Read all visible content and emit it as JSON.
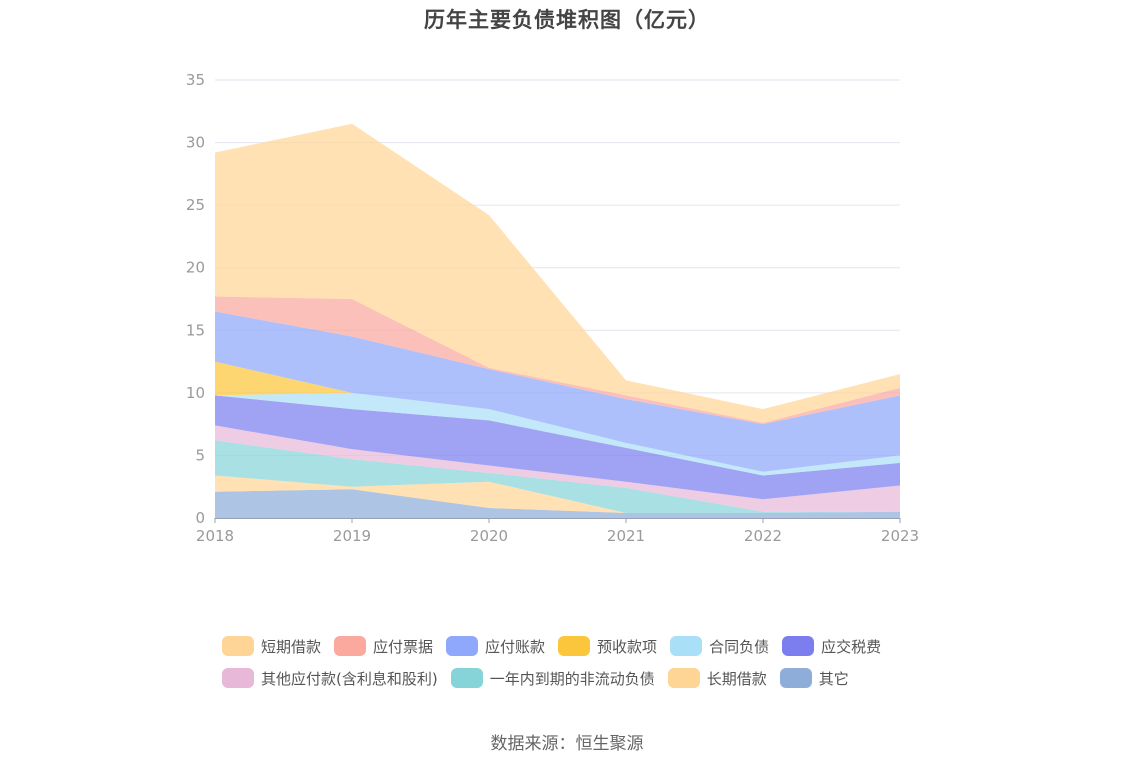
{
  "chart_data": {
    "type": "area",
    "stacked": true,
    "title": "历年主要负债堆积图（亿元）",
    "source": "数据来源：恒生聚源",
    "x": [
      "2018",
      "2019",
      "2020",
      "2021",
      "2022",
      "2023"
    ],
    "y_ticks": [
      "0",
      "5",
      "10",
      "15",
      "20",
      "25",
      "30",
      "35"
    ],
    "ylim": [
      0,
      35
    ],
    "grid": true,
    "legend_position": "bottom",
    "series": [
      {
        "name": "其它",
        "color": "#8fadd9",
        "values": [
          2.1,
          2.3,
          0.8,
          0.4,
          0.4,
          0.5
        ]
      },
      {
        "name": "长期借款",
        "color": "#ffd596",
        "values": [
          1.3,
          0.2,
          2.1,
          0.0,
          0.0,
          0.0
        ]
      },
      {
        "name": "一年内到期的非流动负债",
        "color": "#86d4d8",
        "values": [
          2.8,
          2.2,
          0.7,
          2.0,
          0.1,
          0.0
        ]
      },
      {
        "name": "其他应付款(含利息和股利)",
        "color": "#e8b8d9",
        "values": [
          1.2,
          0.8,
          0.6,
          0.5,
          1.0,
          2.1
        ]
      },
      {
        "name": "应交税费",
        "color": "#7c7ef0",
        "values": [
          2.4,
          3.2,
          3.6,
          2.7,
          1.9,
          1.8
        ]
      },
      {
        "name": "合同负债",
        "color": "#aadff8",
        "values": [
          0.0,
          1.3,
          0.9,
          0.4,
          0.3,
          0.6
        ]
      },
      {
        "name": "预收款项",
        "color": "#fcc63c",
        "values": [
          2.7,
          0.0,
          0.0,
          0.0,
          0.0,
          0.0
        ]
      },
      {
        "name": "应付账款",
        "color": "#8fa8fb",
        "values": [
          4.0,
          4.5,
          3.2,
          3.5,
          3.8,
          4.8
        ]
      },
      {
        "name": "应付票据",
        "color": "#fba89f",
        "values": [
          1.2,
          3.0,
          0.1,
          0.3,
          0.1,
          0.6
        ]
      },
      {
        "name": "短期借款",
        "color": "#ffd596",
        "values": [
          11.5,
          14.0,
          12.2,
          1.2,
          1.1,
          1.1
        ]
      }
    ]
  },
  "legend_rows": [
    [
      "短期借款",
      "应付票据",
      "应付账款",
      "预收款项",
      "合同负债",
      "应交税费"
    ],
    [
      "其他应付款(含利息和股利)",
      "一年内到期的非流动负债",
      "长期借款",
      "其它"
    ]
  ]
}
